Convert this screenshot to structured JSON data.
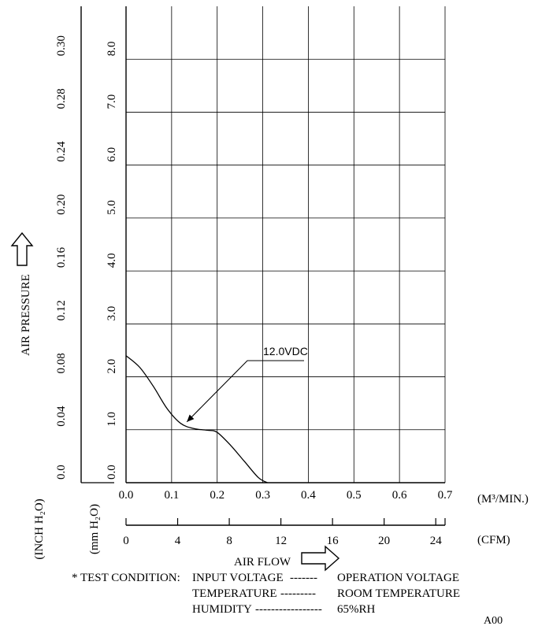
{
  "chart_data": {
    "type": "line",
    "title": "",
    "x_units": {
      "metric": "(M³/MIN.)",
      "imperial": "(CFM)"
    },
    "xlabel": "AIR FLOW",
    "ylabel": "AIR PRESSURE",
    "y_units": {
      "imperial": "(INCH H₂O)",
      "metric": "(mm H₂O)"
    },
    "xlim": [
      0,
      0.7
    ],
    "ylim": [
      0,
      9
    ],
    "grid": true,
    "x_ticks_m3min": [
      "0.0",
      "0.1",
      "0.2",
      "0.3",
      "0.4",
      "0.5",
      "0.6",
      "0.7"
    ],
    "x_ticks_cfm": [
      "0",
      "4",
      "8",
      "12",
      "16",
      "20",
      "24"
    ],
    "y_ticks_mmh2o": [
      "0.0",
      "1.0",
      "2.0",
      "3.0",
      "4.0",
      "5.0",
      "6.0",
      "7.0",
      "8.0"
    ],
    "y_ticks_inchh2o": [
      "0.0",
      "0.04",
      "0.08",
      "0.12",
      "0.16",
      "0.20",
      "0.24",
      "0.28",
      "0.30"
    ],
    "series": [
      {
        "name": "12.0VDC",
        "x": [
          0.0,
          0.03,
          0.06,
          0.09,
          0.12,
          0.15,
          0.18,
          0.2,
          0.23,
          0.26,
          0.29,
          0.31
        ],
        "y": [
          2.4,
          2.18,
          1.82,
          1.4,
          1.12,
          1.02,
          0.99,
          0.95,
          0.7,
          0.4,
          0.1,
          0.0
        ]
      }
    ],
    "annotation": {
      "label": "12.0VDC",
      "points_to": {
        "x": 0.13,
        "y": 1.12
      }
    }
  },
  "test_condition": {
    "prefix": "* TEST CONDITION:",
    "rows": [
      {
        "name": "INPUT VOLTAGE",
        "dashes": "-------",
        "value": "OPERATION VOLTAGE"
      },
      {
        "name": "TEMPERATURE",
        "dashes": "---------",
        "value": "ROOM TEMPERATURE"
      },
      {
        "name": "HUMIDITY",
        "dashes": "-----------------",
        "value": "65%RH"
      }
    ]
  },
  "code": "A00"
}
